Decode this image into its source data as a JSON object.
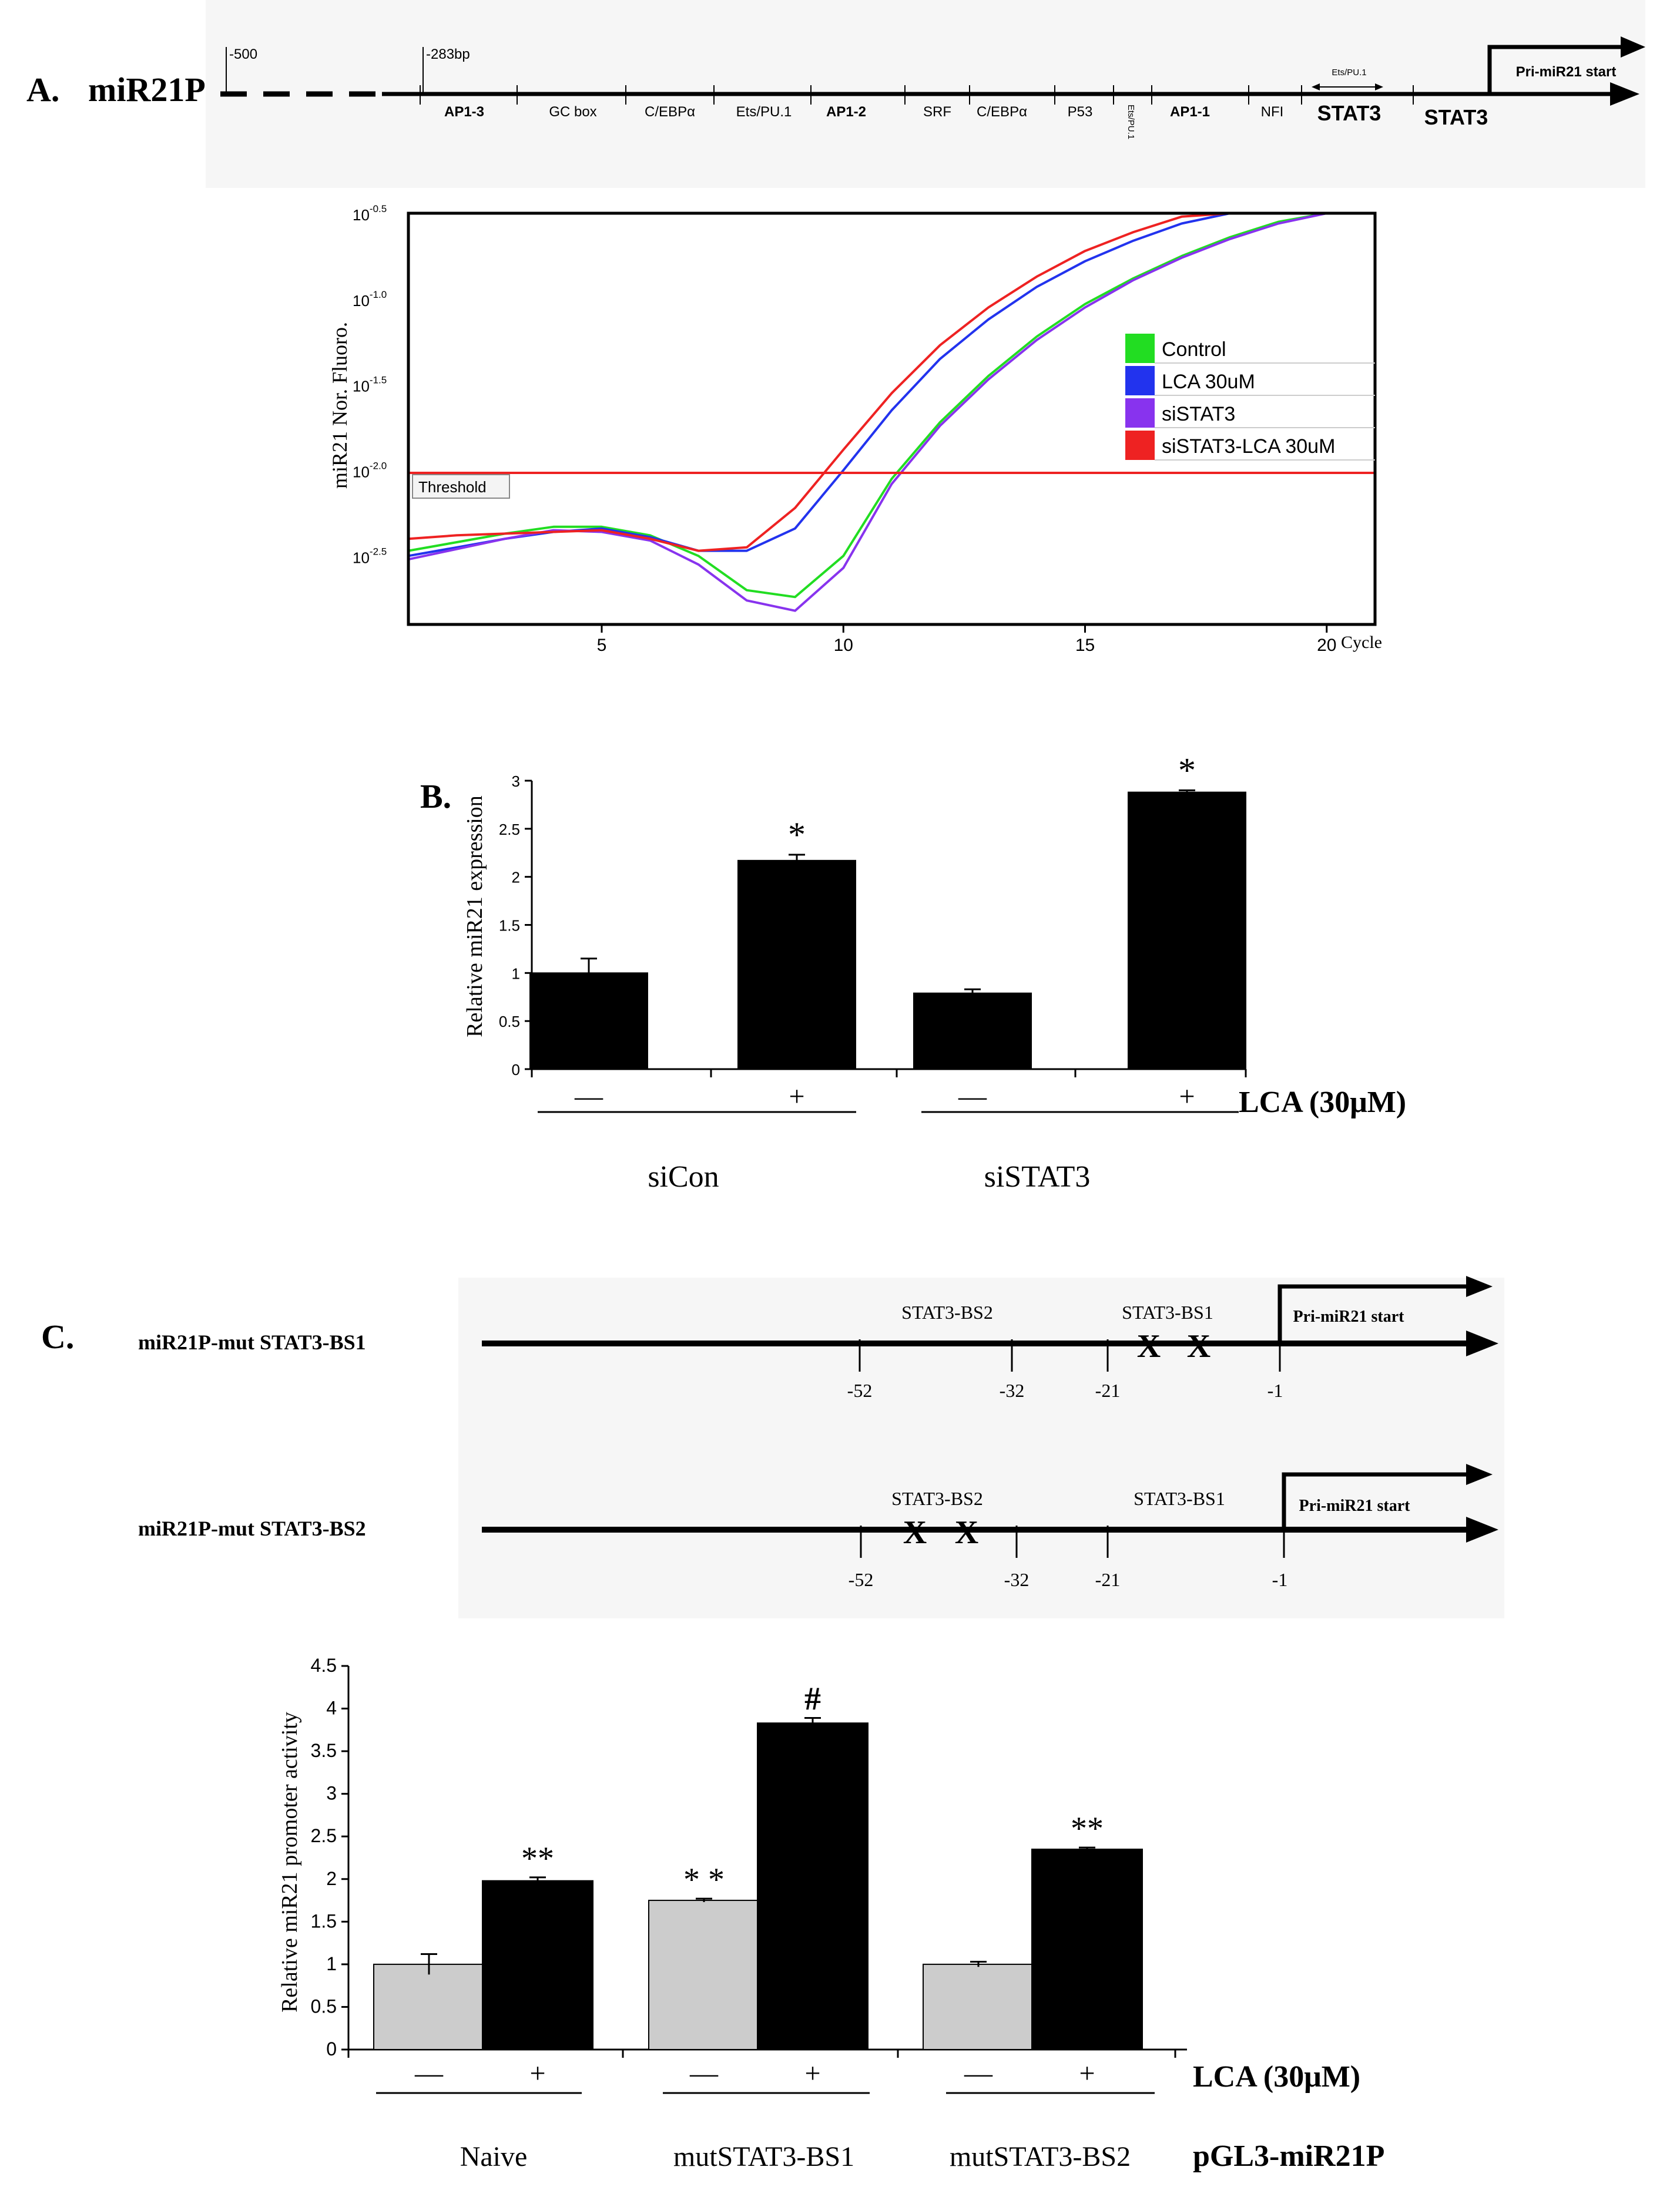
{
  "panel_a": {
    "label": "A.",
    "name": "miR21P",
    "bp_start": "-500",
    "bp_mark": "-283bp",
    "sites": [
      "AP1-3",
      "GC box",
      "C/EBPα",
      "Ets/PU.1",
      "AP1-2",
      "SRF",
      "C/EBPα",
      "P53",
      "Ets/PU.1",
      "AP1-1",
      "NFI"
    ],
    "stat3_label": "STAT3",
    "stat3_label_2": "STAT3",
    "ets_small": "Ets/PU.1",
    "start_label": "Pri-miR21 start",
    "threshold_label": "Threshold",
    "ylabel": "miR21 Nor. Fluoro.",
    "ytick_base": "10",
    "ytick_exps": [
      "-0.5",
      "-1.0",
      "-1.5",
      "-2.0",
      "-2.5"
    ],
    "xticks": [
      "5",
      "10",
      "15",
      "20"
    ],
    "xlabel": "Cycle",
    "legend": [
      {
        "name": "Control",
        "color": "#22dd22"
      },
      {
        "name": "LCA 30uM",
        "color": "#2233ee"
      },
      {
        "name": "siSTAT3",
        "color": "#8833ee"
      },
      {
        "name": "siSTAT3-LCA 30uM",
        "color": "#ee2222"
      }
    ]
  },
  "panel_b": {
    "label": "B.",
    "ylabel": "Relative miR21 expression",
    "yticks": [
      "0",
      "0.5",
      "1",
      "1.5",
      "2",
      "2.5",
      "3"
    ],
    "stars": [
      "*",
      "*"
    ],
    "lca_signs": [
      "—",
      "+",
      "—",
      "+"
    ],
    "lca_label": "LCA (30μM)",
    "groups": [
      "siCon",
      "siSTAT3"
    ]
  },
  "panel_c": {
    "label": "C.",
    "construct1": "miR21P-mut STAT3-BS1",
    "construct2": "miR21P-mut STAT3-BS2",
    "bs2": "STAT3-BS2",
    "bs1": "STAT3-BS1",
    "start_label": "Pri-miR21 start",
    "positions": [
      "-52",
      "-32",
      "-21",
      "-1"
    ],
    "mut_mark": "X",
    "ylabel": "Relative miR21 promoter activity",
    "yticks": [
      "0",
      "0.5",
      "1",
      "1.5",
      "2",
      "2.5",
      "3",
      "3.5",
      "4",
      "4.5"
    ],
    "annotations": [
      "**",
      "* *",
      "#",
      "**"
    ],
    "lca_signs": [
      "—",
      "+",
      "—",
      "+",
      "—",
      "+"
    ],
    "lca_label": "LCA (30μM)",
    "groups": [
      "Naive",
      "mutSTAT3-BS1",
      "mutSTAT3-BS2"
    ],
    "vector_label": "pGL3-miR21P"
  },
  "chart_data": [
    {
      "type": "line",
      "title": "",
      "xlabel": "Cycle",
      "ylabel": "miR21 Nor. Fluoro. (log10)",
      "xlim": [
        1,
        21
      ],
      "ylim": [
        -2.9,
        -0.5
      ],
      "threshold": -2.0,
      "series": [
        {
          "name": "Control",
          "color": "#22dd22",
          "x": [
            1,
            2,
            3,
            4,
            5,
            6,
            7,
            8,
            9,
            10,
            11,
            12,
            13,
            14,
            15,
            16,
            17,
            18,
            19,
            20
          ],
          "y": [
            -2.47,
            -2.42,
            -2.37,
            -2.33,
            -2.33,
            -2.38,
            -2.5,
            -2.7,
            -2.74,
            -2.5,
            -2.05,
            -1.72,
            -1.45,
            -1.22,
            -1.03,
            -0.88,
            -0.75,
            -0.64,
            -0.55,
            -0.5
          ]
        },
        {
          "name": "LCA 30uM",
          "color": "#2233ee",
          "x": [
            1,
            2,
            3,
            4,
            5,
            6,
            7,
            8,
            9,
            10,
            11,
            12,
            13,
            14,
            15,
            16,
            17,
            18,
            19,
            20
          ],
          "y": [
            -2.5,
            -2.45,
            -2.4,
            -2.36,
            -2.34,
            -2.39,
            -2.47,
            -2.47,
            -2.34,
            -2.0,
            -1.65,
            -1.35,
            -1.12,
            -0.93,
            -0.78,
            -0.66,
            -0.56,
            -0.5,
            -0.5,
            -0.5
          ]
        },
        {
          "name": "siSTAT3",
          "color": "#8833ee",
          "x": [
            1,
            2,
            3,
            4,
            5,
            6,
            7,
            8,
            9,
            10,
            11,
            12,
            13,
            14,
            15,
            16,
            17,
            18,
            19,
            20
          ],
          "y": [
            -2.52,
            -2.46,
            -2.4,
            -2.35,
            -2.36,
            -2.41,
            -2.55,
            -2.76,
            -2.82,
            -2.57,
            -2.08,
            -1.74,
            -1.47,
            -1.24,
            -1.05,
            -0.89,
            -0.76,
            -0.65,
            -0.56,
            -0.5
          ]
        },
        {
          "name": "siSTAT3-LCA 30uM",
          "color": "#ee2222",
          "x": [
            1,
            2,
            3,
            4,
            5,
            6,
            7,
            8,
            9,
            10,
            11,
            12,
            13,
            14,
            15,
            16,
            17,
            18,
            19,
            20
          ],
          "y": [
            -2.4,
            -2.38,
            -2.37,
            -2.36,
            -2.35,
            -2.4,
            -2.47,
            -2.45,
            -2.22,
            -1.88,
            -1.55,
            -1.27,
            -1.05,
            -0.87,
            -0.72,
            -0.61,
            -0.52,
            -0.5,
            -0.5,
            -0.5
          ]
        }
      ]
    },
    {
      "type": "bar",
      "title": "",
      "ylabel": "Relative miR21 expression",
      "ylim": [
        0,
        3
      ],
      "categories": [
        "siCon −",
        "siCon +",
        "siSTAT3 −",
        "siSTAT3 +"
      ],
      "values": [
        1.0,
        2.17,
        0.79,
        2.88
      ],
      "errors": [
        0.15,
        0.06,
        0.04,
        0.02
      ],
      "colors": [
        "#000000",
        "#000000",
        "#000000",
        "#000000"
      ]
    },
    {
      "type": "bar",
      "title": "",
      "ylabel": "Relative miR21 promoter activity",
      "ylim": [
        0,
        4.5
      ],
      "categories": [
        "Naive −",
        "Naive +",
        "mutSTAT3-BS1 −",
        "mutSTAT3-BS1 +",
        "mutSTAT3-BS2 −",
        "mutSTAT3-BS2 +"
      ],
      "values": [
        1.0,
        1.98,
        1.75,
        3.83,
        1.0,
        2.35
      ],
      "errors": [
        0.12,
        0.04,
        0.02,
        0.06,
        0.03,
        0.02
      ],
      "colors": [
        "#cccccc",
        "#000000",
        "#cccccc",
        "#000000",
        "#cccccc",
        "#000000"
      ]
    }
  ]
}
